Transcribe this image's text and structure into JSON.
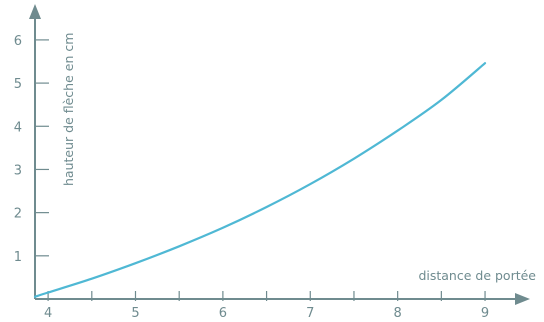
{
  "chart_data": {
    "type": "line",
    "xlabel": "distance de portée",
    "ylabel": "hauteur de flèche en cm",
    "xlim": [
      3.85,
      9.4
    ],
    "ylim": [
      0,
      6.6
    ],
    "x_ticks": [
      4,
      5,
      6,
      7,
      8,
      9
    ],
    "x_minor_ticks": [
      4.5,
      5.5,
      6.5,
      7.5,
      8.5
    ],
    "y_ticks": [
      1,
      2,
      3,
      4,
      5,
      6
    ],
    "grid": false,
    "colors": {
      "axis": "#6f8b8f",
      "series": "#4fb8d4"
    },
    "series": [
      {
        "x": [
          3.85,
          4.0,
          4.5,
          5.0,
          5.5,
          6.0,
          6.5,
          7.0,
          7.5,
          8.0,
          8.5,
          9.0
        ],
        "y": [
          0.05,
          0.15,
          0.47,
          0.83,
          1.22,
          1.65,
          2.13,
          2.66,
          3.25,
          3.9,
          4.61,
          5.46
        ]
      }
    ]
  }
}
